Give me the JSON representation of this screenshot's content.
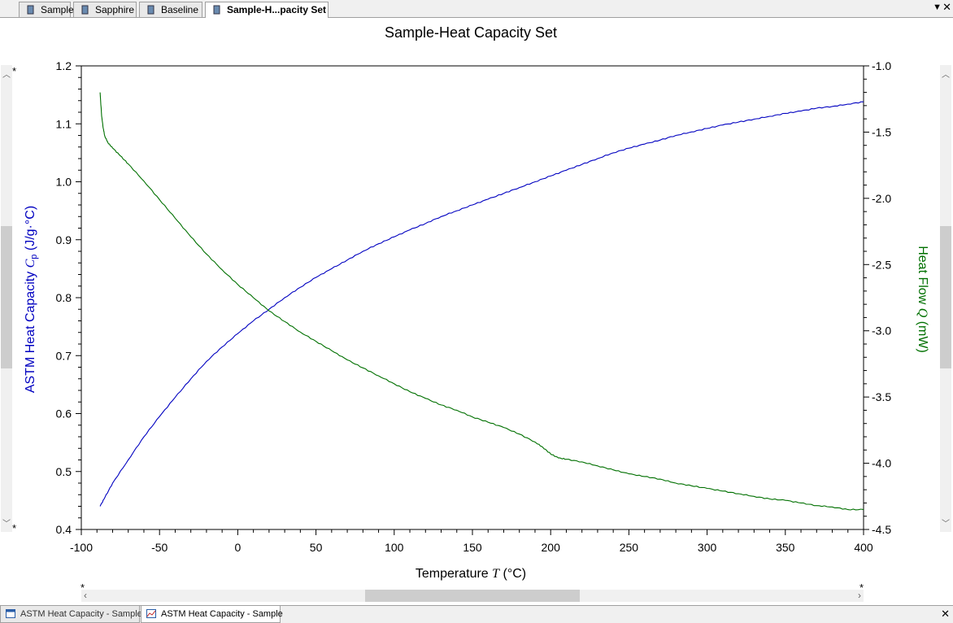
{
  "top_tabs": [
    {
      "label": "Sample",
      "active": false
    },
    {
      "label": "Sapphire",
      "active": false
    },
    {
      "label": "Baseline",
      "active": false
    },
    {
      "label": "Sample-H...pacity Set",
      "active": true
    }
  ],
  "icons": {
    "tab_dropdown": "chevron-down-icon",
    "close": "close-icon",
    "tab_doc": "document-icon",
    "chart_tab": "chart-icon",
    "table_tab": "table-icon"
  },
  "bottom_tabs": [
    {
      "label": "ASTM Heat Capacity - Sample",
      "active": false,
      "icon": "table-icon"
    },
    {
      "label": "ASTM Heat Capacity - Sample",
      "active": true,
      "icon": "chart-icon"
    }
  ],
  "chart_data": {
    "type": "line",
    "title": "Sample-Heat Capacity Set",
    "xlabel": {
      "prefix": "Temperature ",
      "symbol": "T",
      "unit": " (°C)"
    },
    "ylabel_left": {
      "prefix": "ASTM Heat Capacity ",
      "symbol": "C",
      "subscript": "p",
      "unit": " (J/g·°C)"
    },
    "ylabel_right": {
      "prefix": "Heat Flow ",
      "symbol": "Q",
      "unit": " (mW)"
    },
    "xlim": [
      -100,
      400
    ],
    "ylim_left": [
      0.4,
      1.2
    ],
    "ylim_right": [
      -4.5,
      -1.0
    ],
    "x_ticks": [
      "-100",
      "-50",
      "0",
      "50",
      "100",
      "150",
      "200",
      "250",
      "300",
      "350",
      "400"
    ],
    "y_left_ticks": [
      "0.4",
      "0.5",
      "0.6",
      "0.7",
      "0.8",
      "0.9",
      "1.0",
      "1.1",
      "1.2"
    ],
    "y_right_ticks": [
      "-4.5",
      "-4.0",
      "-3.5",
      "-3.0",
      "-2.5",
      "-2.0",
      "-1.5",
      "-1.0"
    ],
    "grid": false,
    "series": [
      {
        "axis": "left",
        "color": "#0000c0",
        "points": [
          [
            -88,
            0.44
          ],
          [
            -85,
            0.455
          ],
          [
            -80,
            0.48
          ],
          [
            -70,
            0.52
          ],
          [
            -60,
            0.56
          ],
          [
            -50,
            0.595
          ],
          [
            -40,
            0.628
          ],
          [
            -30,
            0.66
          ],
          [
            -20,
            0.69
          ],
          [
            -10,
            0.715
          ],
          [
            0,
            0.738
          ],
          [
            10,
            0.76
          ],
          [
            20,
            0.78
          ],
          [
            30,
            0.8
          ],
          [
            40,
            0.818
          ],
          [
            50,
            0.835
          ],
          [
            60,
            0.85
          ],
          [
            70,
            0.865
          ],
          [
            80,
            0.88
          ],
          [
            90,
            0.893
          ],
          [
            100,
            0.905
          ],
          [
            110,
            0.917
          ],
          [
            120,
            0.928
          ],
          [
            130,
            0.94
          ],
          [
            140,
            0.95
          ],
          [
            150,
            0.96
          ],
          [
            160,
            0.97
          ],
          [
            170,
            0.98
          ],
          [
            180,
            0.99
          ],
          [
            190,
            1.0
          ],
          [
            200,
            1.01
          ],
          [
            210,
            1.02
          ],
          [
            220,
            1.03
          ],
          [
            230,
            1.04
          ],
          [
            240,
            1.05
          ],
          [
            250,
            1.058
          ],
          [
            260,
            1.065
          ],
          [
            270,
            1.072
          ],
          [
            280,
            1.08
          ],
          [
            290,
            1.086
          ],
          [
            300,
            1.092
          ],
          [
            310,
            1.098
          ],
          [
            320,
            1.103
          ],
          [
            330,
            1.108
          ],
          [
            340,
            1.113
          ],
          [
            350,
            1.118
          ],
          [
            360,
            1.122
          ],
          [
            370,
            1.127
          ],
          [
            380,
            1.13
          ],
          [
            390,
            1.134
          ],
          [
            400,
            1.138
          ]
        ]
      },
      {
        "axis": "right",
        "color": "#007000",
        "points": [
          [
            -88,
            -1.2
          ],
          [
            -87,
            -1.38
          ],
          [
            -86,
            -1.47
          ],
          [
            -85,
            -1.53
          ],
          [
            -83,
            -1.58
          ],
          [
            -80,
            -1.62
          ],
          [
            -75,
            -1.68
          ],
          [
            -70,
            -1.74
          ],
          [
            -60,
            -1.87
          ],
          [
            -50,
            -2.01
          ],
          [
            -40,
            -2.15
          ],
          [
            -30,
            -2.29
          ],
          [
            -20,
            -2.42
          ],
          [
            -10,
            -2.54
          ],
          [
            0,
            -2.65
          ],
          [
            10,
            -2.75
          ],
          [
            20,
            -2.85
          ],
          [
            30,
            -2.93
          ],
          [
            40,
            -3.01
          ],
          [
            50,
            -3.08
          ],
          [
            60,
            -3.15
          ],
          [
            70,
            -3.22
          ],
          [
            80,
            -3.28
          ],
          [
            90,
            -3.34
          ],
          [
            100,
            -3.4
          ],
          [
            110,
            -3.46
          ],
          [
            120,
            -3.51
          ],
          [
            130,
            -3.56
          ],
          [
            140,
            -3.6
          ],
          [
            150,
            -3.65
          ],
          [
            160,
            -3.69
          ],
          [
            170,
            -3.73
          ],
          [
            180,
            -3.78
          ],
          [
            190,
            -3.84
          ],
          [
            195,
            -3.88
          ],
          [
            200,
            -3.93
          ],
          [
            205,
            -3.96
          ],
          [
            210,
            -3.97
          ],
          [
            220,
            -3.99
          ],
          [
            230,
            -4.02
          ],
          [
            240,
            -4.05
          ],
          [
            250,
            -4.08
          ],
          [
            260,
            -4.1
          ],
          [
            270,
            -4.12
          ],
          [
            280,
            -4.15
          ],
          [
            290,
            -4.17
          ],
          [
            300,
            -4.19
          ],
          [
            310,
            -4.21
          ],
          [
            320,
            -4.23
          ],
          [
            330,
            -4.25
          ],
          [
            340,
            -4.27
          ],
          [
            350,
            -4.28
          ],
          [
            360,
            -4.3
          ],
          [
            370,
            -4.32
          ],
          [
            380,
            -4.33
          ],
          [
            390,
            -4.35
          ],
          [
            400,
            -4.35
          ]
        ]
      }
    ]
  }
}
